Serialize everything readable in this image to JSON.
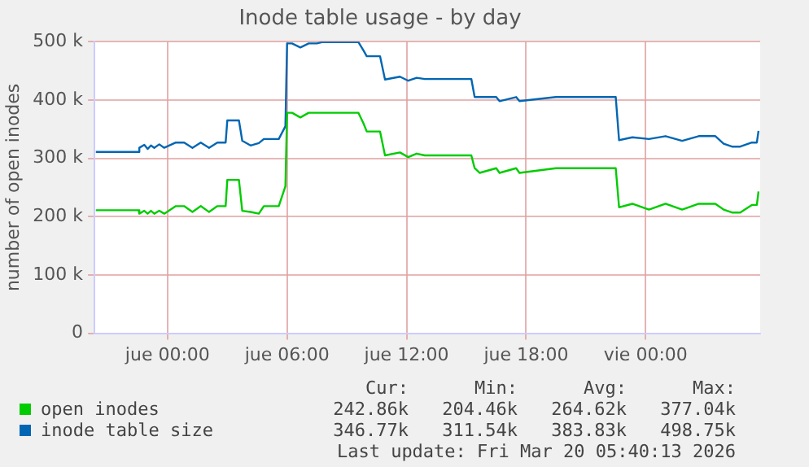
{
  "chart_data": {
    "type": "line",
    "title": "Inode table usage - by day",
    "ylabel": "number of open inodes",
    "x": [
      "2026-03-18T20:24",
      "2026-03-18T22:33",
      "2026-03-18T22:35",
      "2026-03-18T22:50",
      "2026-03-18T23:00",
      "2026-03-18T23:10",
      "2026-03-18T23:20",
      "2026-03-18T23:35",
      "2026-03-18T23:50",
      "2026-03-19T00:25",
      "2026-03-19T00:50",
      "2026-03-19T01:15",
      "2026-03-19T01:40",
      "2026-03-19T02:05",
      "2026-03-19T02:30",
      "2026-03-19T02:55",
      "2026-03-19T03:00",
      "2026-03-19T03:35",
      "2026-03-19T03:45",
      "2026-03-19T04:10",
      "2026-03-19T04:35",
      "2026-03-19T04:50",
      "2026-03-19T05:35",
      "2026-03-19T05:55",
      "2026-03-19T06:00",
      "2026-03-19T06:15",
      "2026-03-19T06:40",
      "2026-03-19T07:05",
      "2026-03-19T07:30",
      "2026-03-19T07:45",
      "2026-03-19T08:45",
      "2026-03-19T09:35",
      "2026-03-19T09:50",
      "2026-03-19T10:00",
      "2026-03-19T10:40",
      "2026-03-19T10:55",
      "2026-03-19T11:40",
      "2026-03-19T12:05",
      "2026-03-19T12:30",
      "2026-03-19T12:55",
      "2026-03-19T13:30",
      "2026-03-19T15:15",
      "2026-03-19T15:25",
      "2026-03-19T15:40",
      "2026-03-19T16:30",
      "2026-03-19T16:40",
      "2026-03-19T17:30",
      "2026-03-19T17:40",
      "2026-03-19T19:30",
      "2026-03-19T22:30",
      "2026-03-19T22:40",
      "2026-03-19T23:20",
      "2026-03-20T00:10",
      "2026-03-20T01:00",
      "2026-03-20T01:50",
      "2026-03-20T02:40",
      "2026-03-20T03:30",
      "2026-03-20T03:55",
      "2026-03-20T04:20",
      "2026-03-20T04:45",
      "2026-03-20T05:20",
      "2026-03-20T05:35",
      "2026-03-20T05:40"
    ],
    "series": [
      {
        "name": "open inodes",
        "color": "#00cc00",
        "values": [
          211000,
          211000,
          205000,
          210000,
          205000,
          210000,
          205000,
          210000,
          205000,
          218000,
          218000,
          208000,
          218000,
          208000,
          218000,
          218000,
          263000,
          263000,
          210000,
          208000,
          205000,
          218000,
          218000,
          252000,
          378000,
          378000,
          370000,
          378000,
          378000,
          378000,
          378000,
          378000,
          360000,
          346000,
          346000,
          305000,
          310000,
          302000,
          308000,
          305000,
          305000,
          305000,
          283000,
          275000,
          283000,
          275000,
          283000,
          275000,
          283000,
          283000,
          216000,
          222000,
          212000,
          222000,
          212000,
          222000,
          222000,
          212000,
          207000,
          207000,
          220000,
          220000,
          243000
        ]
      },
      {
        "name": "inode table size",
        "color": "#0066b3",
        "values": [
          311000,
          311000,
          318000,
          323000,
          316000,
          322000,
          318000,
          324000,
          318000,
          327000,
          327000,
          318000,
          327000,
          318000,
          327000,
          327000,
          365000,
          365000,
          330000,
          322000,
          326000,
          333000,
          333000,
          355000,
          497000,
          497000,
          490000,
          497000,
          497000,
          499000,
          499000,
          499000,
          485000,
          475000,
          475000,
          435000,
          440000,
          433000,
          438000,
          436000,
          436000,
          436000,
          405000,
          405000,
          405000,
          398000,
          405000,
          398000,
          405000,
          405000,
          331000,
          336000,
          333000,
          338000,
          330000,
          338000,
          338000,
          325000,
          320000,
          320000,
          327000,
          327000,
          347000
        ]
      }
    ],
    "xlim": [
      "2026-03-18T20:20",
      "2026-03-20T05:45"
    ],
    "xticks": [
      {
        "value": "2026-03-19T00:00",
        "label": "jue 00:00"
      },
      {
        "value": "2026-03-19T06:00",
        "label": "jue 06:00"
      },
      {
        "value": "2026-03-19T12:00",
        "label": "jue 12:00"
      },
      {
        "value": "2026-03-19T18:00",
        "label": "jue 18:00"
      },
      {
        "value": "2026-03-20T00:00",
        "label": "vie 00:00"
      }
    ],
    "ylim": [
      0,
      500000
    ],
    "yticks": [
      {
        "value": 0,
        "label": "0"
      },
      {
        "value": 100000,
        "label": "100 k"
      },
      {
        "value": 200000,
        "label": "200 k"
      },
      {
        "value": 300000,
        "label": "300 k"
      },
      {
        "value": 400000,
        "label": "400 k"
      },
      {
        "value": 500000,
        "label": "500 k"
      }
    ],
    "grid": true,
    "legend": "bottom",
    "marker": "none",
    "line_style": "solid",
    "annotations": [
      "Cur:",
      "Min:",
      "Avg:",
      "Max:",
      "242.86k",
      "204.46k",
      "264.62k",
      "377.04k",
      "346.77k",
      "311.54k",
      "383.83k",
      "498.75k",
      "Last update: Fri Mar 20 05:40:13 2026"
    ]
  }
}
